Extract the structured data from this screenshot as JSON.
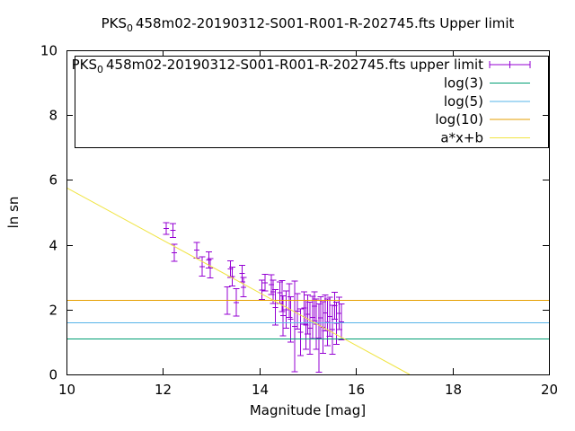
{
  "window": {
    "background": "#ffffff",
    "foreground": "#000000"
  },
  "title": {
    "prefix": "PKS",
    "subscript": "0",
    "rest": "458m02-20190312-S001-R001-R-202745.fts Upper limit"
  },
  "axes": {
    "xlabel": "Magnitude [mag]",
    "ylabel": "ln sn",
    "xlim": [
      10,
      20
    ],
    "ylim": [
      0,
      10
    ],
    "x_ticks": [
      10,
      12,
      14,
      16,
      18,
      20
    ],
    "y_ticks": [
      0,
      2,
      4,
      6,
      8,
      10
    ],
    "grid": false,
    "border_box": true,
    "mirror_ticks": true
  },
  "legend": {
    "position": "top-right-inside",
    "boxed": true,
    "entries": [
      {
        "label_prefix": "PKS",
        "label_subscript": "0",
        "label_rest": "458m02-20190312-S001-R001-R-202745.fts upper limit",
        "sample": "errorbar",
        "color": "#9400D3"
      },
      {
        "label_prefix": "",
        "label_subscript": "",
        "label_rest": "log(3)",
        "sample": "line",
        "color": "#009E73"
      },
      {
        "label_prefix": "",
        "label_subscript": "",
        "label_rest": "log(5)",
        "sample": "line",
        "color": "#56B4E9"
      },
      {
        "label_prefix": "",
        "label_subscript": "",
        "label_rest": "log(10)",
        "sample": "line",
        "color": "#E69F00"
      },
      {
        "label_prefix": "",
        "label_subscript": "",
        "label_rest": "a*x+b",
        "sample": "line",
        "color": "#F0E442"
      }
    ]
  },
  "chart_data": {
    "type": "scatter",
    "style": "yerrorbars with constant reference lines and linear fit",
    "title": "PKS_0 458m02-20190312-S001-R001-R-202745.fts Upper limit",
    "xlabel": "Magnitude [mag]",
    "ylabel": "ln sn",
    "xlim": [
      10,
      20
    ],
    "ylim": [
      0,
      10
    ],
    "series": [
      {
        "name": "PKS_0 458m02-20190312-S001-R001-R-202745.fts upper limit",
        "type": "yerrorbars",
        "color": "#9400D3",
        "points_mag_lnsn_err": [
          [
            12.07,
            4.5,
            0.18
          ],
          [
            12.21,
            4.44,
            0.22
          ],
          [
            12.23,
            3.75,
            0.26
          ],
          [
            12.7,
            3.83,
            0.24
          ],
          [
            12.81,
            3.33,
            0.3
          ],
          [
            12.95,
            3.53,
            0.25
          ],
          [
            12.98,
            3.28,
            0.3
          ],
          [
            13.33,
            2.28,
            0.42
          ],
          [
            13.4,
            3.25,
            0.26
          ],
          [
            13.44,
            3.02,
            0.29
          ],
          [
            13.52,
            2.22,
            0.42
          ],
          [
            13.64,
            3.11,
            0.25
          ],
          [
            13.67,
            2.69,
            0.3
          ],
          [
            14.05,
            2.61,
            0.3
          ],
          [
            14.12,
            2.83,
            0.26
          ],
          [
            14.25,
            2.77,
            0.31
          ],
          [
            14.28,
            2.55,
            0.36
          ],
          [
            14.33,
            2.07,
            0.55
          ],
          [
            14.42,
            2.52,
            0.33
          ],
          [
            14.47,
            2.42,
            0.48
          ],
          [
            14.49,
            1.81,
            0.62
          ],
          [
            14.55,
            2.0,
            0.58
          ],
          [
            14.62,
            2.28,
            0.52
          ],
          [
            14.65,
            1.7,
            0.7
          ],
          [
            14.73,
            1.48,
            1.4
          ],
          [
            14.79,
            1.95,
            0.55
          ],
          [
            14.85,
            1.3,
            0.72
          ],
          [
            14.93,
            2.05,
            0.5
          ],
          [
            14.96,
            1.53,
            0.75
          ],
          [
            15.0,
            1.85,
            0.6
          ],
          [
            15.05,
            1.43,
            0.8
          ],
          [
            15.1,
            1.76,
            0.65
          ],
          [
            15.14,
            2.1,
            0.45
          ],
          [
            15.18,
            1.55,
            0.78
          ],
          [
            15.23,
            1.12,
            1.05
          ],
          [
            15.27,
            1.75,
            0.65
          ],
          [
            15.32,
            1.45,
            0.8
          ],
          [
            15.36,
            1.9,
            0.55
          ],
          [
            15.41,
            1.6,
            0.72
          ],
          [
            15.46,
            1.78,
            0.6
          ],
          [
            15.51,
            1.38,
            0.75
          ],
          [
            15.56,
            2.12,
            0.42
          ],
          [
            15.6,
            1.58,
            0.65
          ],
          [
            15.65,
            1.88,
            0.5
          ],
          [
            15.7,
            1.62,
            0.55
          ]
        ]
      },
      {
        "name": "log(3)",
        "type": "hline",
        "value": 1.0986,
        "color": "#009E73"
      },
      {
        "name": "log(5)",
        "type": "hline",
        "value": 1.6094,
        "color": "#56B4E9"
      },
      {
        "name": "log(10)",
        "type": "hline",
        "value": 2.3026,
        "color": "#E69F00"
      },
      {
        "name": "a*x+b",
        "type": "linear",
        "a": -0.81,
        "b": 13.86,
        "color": "#F0E442"
      }
    ],
    "legend_position": "top-right-inside-boxed"
  },
  "colors": {
    "data_purple": "#9400D3",
    "log3_green": "#009E73",
    "log5_skyblue": "#56B4E9",
    "log10_orange": "#E69F00",
    "fit_yellow": "#F0E442",
    "axis_black": "#000000"
  }
}
